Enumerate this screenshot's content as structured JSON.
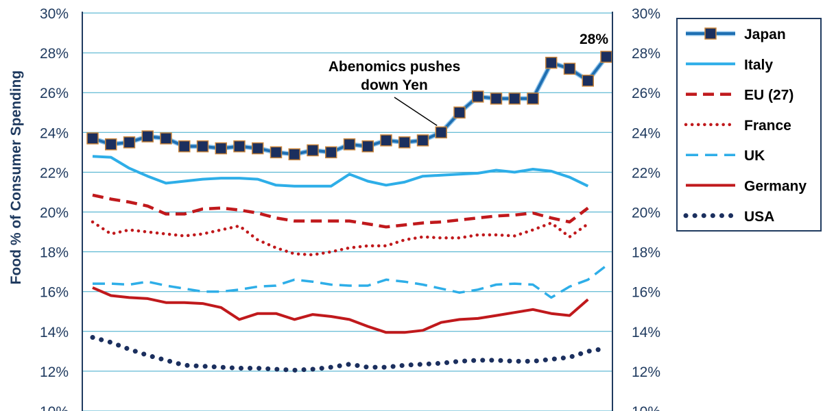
{
  "chart_data": {
    "type": "line",
    "ylabel": "Food % of Consumer Spending",
    "ylim": [
      10,
      30
    ],
    "yticks": [
      "10%",
      "12%",
      "14%",
      "16%",
      "18%",
      "20%",
      "22%",
      "24%",
      "26%",
      "28%",
      "30%"
    ],
    "ytick_values": [
      10,
      12,
      14,
      16,
      18,
      20,
      22,
      24,
      26,
      28,
      30
    ],
    "grid": true,
    "legend_position": "right",
    "annotations": [
      {
        "text_lines": [
          "Abenomics pushes",
          "down Yen"
        ],
        "target_series": "Japan",
        "target_index": 19
      },
      {
        "text": "28%",
        "target_series": "Japan",
        "target_index": 29
      }
    ],
    "series": [
      {
        "name": "Japan",
        "color": "#1f6fb2",
        "style": "solid-marker",
        "values": [
          23.7,
          23.4,
          23.5,
          23.8,
          23.7,
          23.3,
          23.3,
          23.2,
          23.3,
          23.2,
          23.0,
          22.9,
          23.1,
          23.0,
          23.4,
          23.3,
          23.6,
          23.5,
          23.6,
          24.0,
          25.0,
          25.8,
          25.7,
          25.7,
          25.7,
          27.5,
          27.2,
          26.6,
          27.8
        ]
      },
      {
        "name": "Italy",
        "color": "#2eaee8",
        "style": "solid",
        "values": [
          22.8,
          22.75,
          22.2,
          21.8,
          21.45,
          21.55,
          21.65,
          21.7,
          21.7,
          21.65,
          21.35,
          21.3,
          21.3,
          21.3,
          21.9,
          21.55,
          21.35,
          21.5,
          21.8,
          21.85,
          21.9,
          21.95,
          22.1,
          22.0,
          22.15,
          22.05,
          21.75,
          21.3
        ]
      },
      {
        "name": "EU (27)",
        "color": "#c0191c",
        "style": "dash",
        "values": [
          20.85,
          20.65,
          20.5,
          20.3,
          19.9,
          19.9,
          20.15,
          20.2,
          20.1,
          19.95,
          19.7,
          19.55,
          19.55,
          19.55,
          19.55,
          19.4,
          19.25,
          19.35,
          19.45,
          19.5,
          19.6,
          19.7,
          19.8,
          19.85,
          19.95,
          19.7,
          19.5,
          20.2
        ]
      },
      {
        "name": "France",
        "color": "#c0191c",
        "style": "dot",
        "values": [
          19.5,
          18.9,
          19.1,
          19.0,
          18.9,
          18.8,
          18.9,
          19.1,
          19.3,
          18.6,
          18.2,
          17.9,
          17.85,
          18.0,
          18.2,
          18.3,
          18.3,
          18.6,
          18.75,
          18.7,
          18.7,
          18.85,
          18.85,
          18.8,
          19.1,
          19.45,
          18.75,
          19.4
        ]
      },
      {
        "name": "UK",
        "color": "#2eaee8",
        "style": "longdash",
        "values": [
          16.4,
          16.4,
          16.35,
          16.5,
          16.3,
          16.15,
          16.0,
          16.0,
          16.1,
          16.25,
          16.3,
          16.6,
          16.5,
          16.35,
          16.3,
          16.3,
          16.6,
          16.5,
          16.35,
          16.15,
          15.95,
          16.1,
          16.35,
          16.4,
          16.35,
          15.7,
          16.25,
          16.6,
          17.3
        ]
      },
      {
        "name": "Germany",
        "color": "#c0191c",
        "style": "solid",
        "values": [
          16.2,
          15.8,
          15.7,
          15.65,
          15.45,
          15.45,
          15.4,
          15.2,
          14.6,
          14.9,
          14.9,
          14.6,
          14.85,
          14.75,
          14.6,
          14.25,
          13.95,
          13.95,
          14.05,
          14.45,
          14.6,
          14.65,
          14.8,
          14.95,
          15.1,
          14.9,
          14.8,
          15.6
        ]
      },
      {
        "name": "USA",
        "color": "#1b2f5e",
        "style": "bigdot",
        "values": [
          13.7,
          13.45,
          13.1,
          12.8,
          12.55,
          12.3,
          12.25,
          12.2,
          12.15,
          12.15,
          12.1,
          12.05,
          12.1,
          12.2,
          12.35,
          12.2,
          12.2,
          12.3,
          12.35,
          12.4,
          12.5,
          12.55,
          12.55,
          12.5,
          12.5,
          12.6,
          12.7,
          13.0,
          13.15
        ]
      }
    ]
  }
}
